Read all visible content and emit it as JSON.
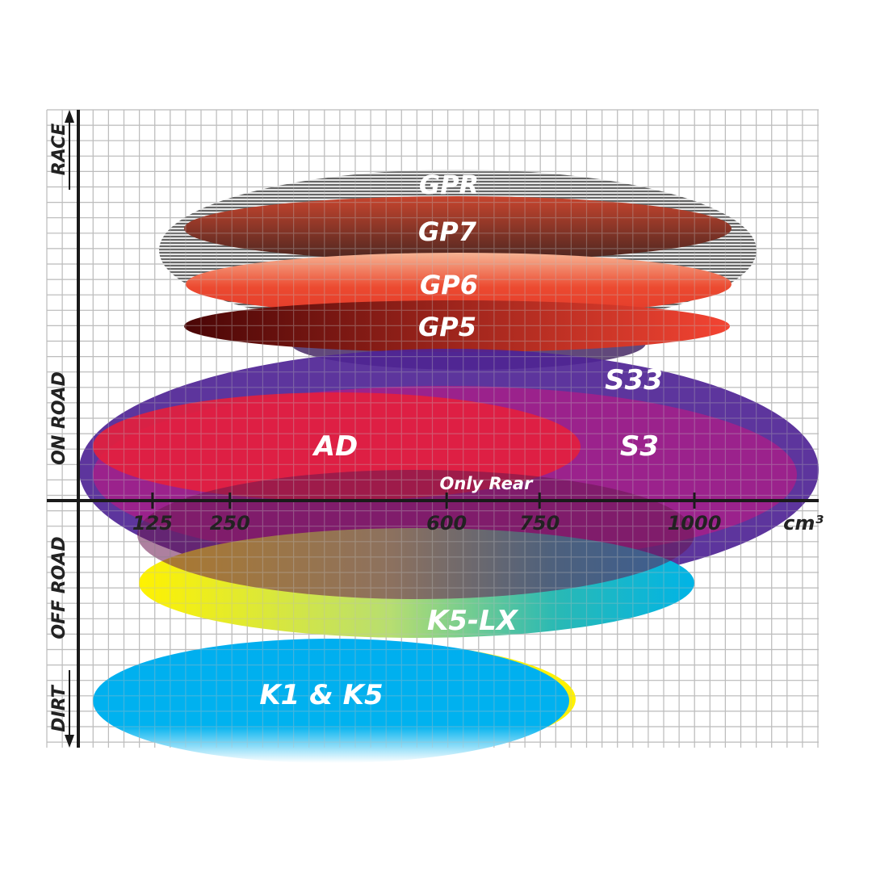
{
  "axis": {
    "x_unit": "cm³",
    "x_ticks": [
      "125",
      "250",
      "600",
      "750",
      "1000"
    ],
    "y_categories": [
      "RACE",
      "ON ROAD",
      "OFF ROAD",
      "DIRT"
    ]
  },
  "products": [
    {
      "name": "GPR",
      "use": "RACE",
      "color": "#9a9a9a"
    },
    {
      "name": "GP7",
      "use": "RACE",
      "color": "#b5412c"
    },
    {
      "name": "GP6",
      "use": "RACE",
      "color": "#e8402c"
    },
    {
      "name": "GP5",
      "use": "RACE",
      "color": "#c01f1a"
    },
    {
      "name": "S33",
      "use": "ON ROAD",
      "color": "#5b2a9a"
    },
    {
      "name": "S3",
      "use": "ON ROAD",
      "color": "#a0208a"
    },
    {
      "name": "AD",
      "use": "ON ROAD",
      "color": "#e0203c"
    },
    {
      "name": "Only Rear",
      "use": "ON ROAD",
      "color": "#7a1f55"
    },
    {
      "name": "K5-LX",
      "use": "OFF ROAD",
      "color": "#00b4e6"
    },
    {
      "name": "K1 & K5",
      "use": "DIRT",
      "color": "#00aeef"
    }
  ]
}
